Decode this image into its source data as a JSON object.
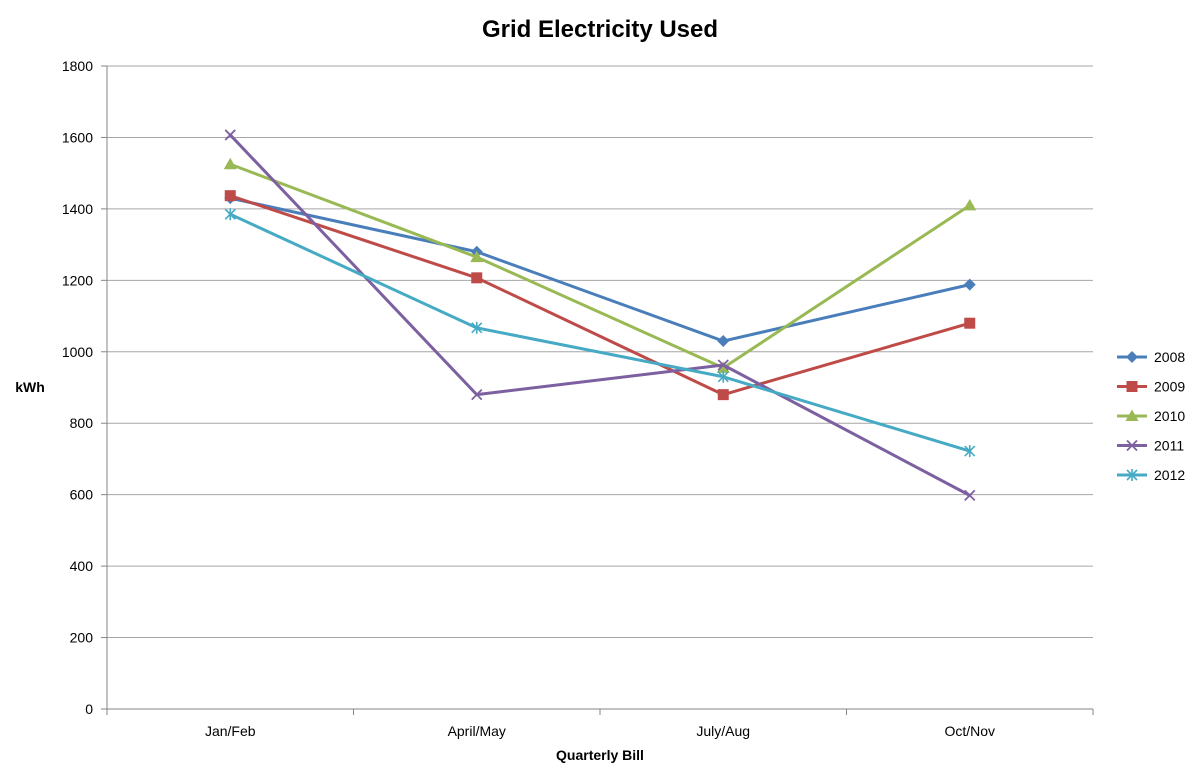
{
  "chart_data": {
    "type": "line",
    "title": "Grid Electricity Used",
    "xlabel": "Quarterly Bill",
    "ylabel": "kWh",
    "categories": [
      "Jan/Feb",
      "April/May",
      "July/Aug",
      "Oct/Nov"
    ],
    "ylim": [
      0,
      1800
    ],
    "yticks": [
      0,
      200,
      400,
      600,
      800,
      1000,
      1200,
      1400,
      1600,
      1800
    ],
    "grid": true,
    "legend_position": "right",
    "series": [
      {
        "name": "2008",
        "color": "#4a7ebb",
        "marker": "diamond",
        "values": [
          1430,
          1280,
          1030,
          1188
        ]
      },
      {
        "name": "2009",
        "color": "#be4b48",
        "marker": "square",
        "values": [
          1437,
          1207,
          880,
          1080
        ]
      },
      {
        "name": "2010",
        "color": "#98b954",
        "marker": "triangle",
        "values": [
          1525,
          1265,
          955,
          1410
        ]
      },
      {
        "name": "2011",
        "color": "#7d60a0",
        "marker": "x",
        "values": [
          1607,
          880,
          963,
          598
        ]
      },
      {
        "name": "2012",
        "color": "#46aac5",
        "marker": "star",
        "values": [
          1385,
          1067,
          930,
          722
        ]
      }
    ]
  }
}
